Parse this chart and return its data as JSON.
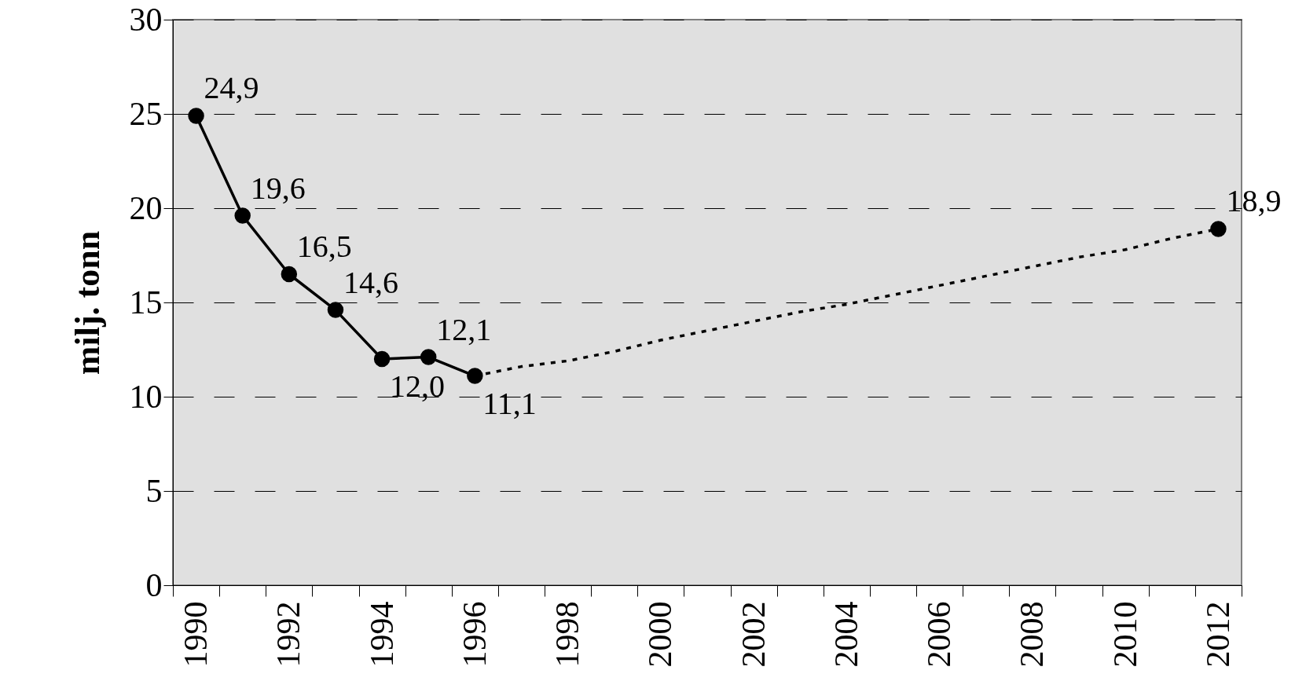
{
  "chart_data": {
    "type": "line",
    "ylabel": "milj. tonn",
    "categories": [
      "1990",
      null,
      "1992",
      null,
      "1994",
      null,
      "1996",
      null,
      "1998",
      null,
      "2000",
      null,
      "2002",
      null,
      "2004",
      null,
      "2006",
      null,
      "2008",
      null,
      "2010",
      null,
      "2012"
    ],
    "ylim": [
      0,
      30
    ],
    "yticks": [
      0,
      5,
      10,
      15,
      20,
      25,
      30
    ],
    "grid": "y",
    "series": [
      {
        "color": "#000000",
        "marker": "circle",
        "line_style": "solid",
        "values": [
          24.9,
          19.6,
          16.5,
          14.6,
          12.0,
          12.1,
          11.1,
          null,
          null,
          null,
          null,
          null,
          null,
          null,
          null,
          null,
          null,
          null,
          null,
          null,
          null,
          null,
          null
        ],
        "value_labels": [
          "24,9",
          "19,6",
          "16,5",
          "14,6",
          "12,0",
          "12,1",
          "11,1",
          null,
          null,
          null,
          null,
          null,
          null,
          null,
          null,
          null,
          null,
          null,
          null,
          null,
          null,
          null,
          null
        ]
      },
      {
        "color": "#000000",
        "line_style": "dotted",
        "values": [
          null,
          null,
          null,
          null,
          null,
          null,
          11.1,
          11.6,
          11.9,
          12.4,
          13.0,
          13.5,
          14.0,
          14.5,
          14.9,
          15.4,
          15.9,
          16.4,
          16.9,
          17.4,
          17.8,
          18.4,
          18.9
        ]
      },
      {
        "type": "scatter",
        "color": "#000000",
        "marker": "circle",
        "values": [
          null,
          null,
          null,
          null,
          null,
          null,
          null,
          null,
          null,
          null,
          null,
          null,
          null,
          null,
          null,
          null,
          null,
          null,
          null,
          null,
          null,
          null,
          18.9
        ],
        "value_labels": [
          null,
          null,
          null,
          null,
          null,
          null,
          null,
          null,
          null,
          null,
          null,
          null,
          null,
          null,
          null,
          null,
          null,
          null,
          null,
          null,
          null,
          null,
          "18,9"
        ]
      }
    ]
  }
}
